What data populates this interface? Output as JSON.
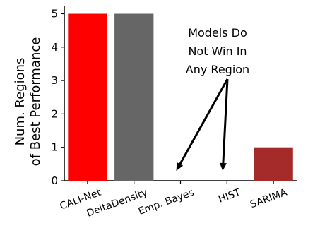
{
  "chart_data": {
    "type": "bar",
    "categories": [
      "CALI-Net",
      "DeltaDensity",
      "Emp. Bayes",
      "HIST",
      "SARIMA"
    ],
    "values": [
      5,
      5,
      0,
      0,
      1
    ],
    "colors": [
      "#ff0000",
      "#666666",
      "#ffffff",
      "#ffffff",
      "#a52a2a"
    ],
    "ylabel_line1": "Num. Regions",
    "ylabel_line2": "of Best Performance",
    "ylim": [
      0,
      5.2
    ],
    "yticks": [
      0,
      1,
      2,
      3,
      4,
      5
    ],
    "annotation": {
      "lines": [
        "Models Do",
        "Not Win In",
        "Any Region"
      ],
      "points_to": [
        "Emp. Bayes",
        "HIST"
      ]
    },
    "grid": false
  }
}
